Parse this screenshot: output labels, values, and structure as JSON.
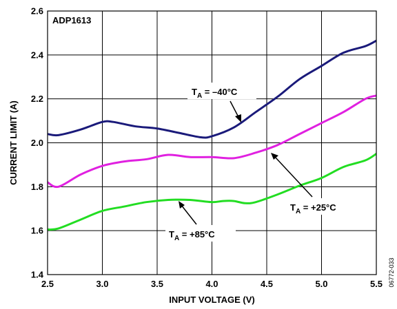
{
  "chart_data": {
    "type": "line",
    "title": "",
    "xlabel": "INPUT VOLTAGE (V)",
    "ylabel": "CURRENT LIMIT (A)",
    "xlim": [
      2.5,
      5.5
    ],
    "ylim": [
      1.4,
      2.6
    ],
    "x_ticks": [
      "2.5",
      "3.0",
      "3.5",
      "4.0",
      "4.5",
      "5.0",
      "5.5"
    ],
    "y_ticks": [
      "1.4",
      "1.6",
      "1.8",
      "2.0",
      "2.2",
      "2.4",
      "2.6"
    ],
    "grid": true,
    "device_label": "ADP1613",
    "figure_id": "06772-033",
    "series": [
      {
        "key": "t_minus40",
        "color": "#1a1a7a",
        "x": [
          2.5,
          2.6,
          2.8,
          3.0,
          3.1,
          3.3,
          3.5,
          3.7,
          3.9,
          4.0,
          4.2,
          4.4,
          4.6,
          4.8,
          5.0,
          5.2,
          5.4,
          5.5
        ],
        "y": [
          2.04,
          2.035,
          2.06,
          2.095,
          2.095,
          2.075,
          2.065,
          2.045,
          2.025,
          2.03,
          2.07,
          2.14,
          2.21,
          2.29,
          2.35,
          2.41,
          2.44,
          2.465
        ]
      },
      {
        "key": "t_plus25",
        "color": "#e020e0",
        "x": [
          2.5,
          2.6,
          2.8,
          3.0,
          3.2,
          3.4,
          3.6,
          3.8,
          4.0,
          4.2,
          4.4,
          4.6,
          4.8,
          5.0,
          5.2,
          5.4,
          5.5
        ],
        "y": [
          1.82,
          1.8,
          1.855,
          1.895,
          1.915,
          1.925,
          1.945,
          1.935,
          1.935,
          1.93,
          1.955,
          1.99,
          2.04,
          2.09,
          2.14,
          2.2,
          2.215
        ]
      },
      {
        "key": "t_plus85",
        "color": "#22dd22",
        "x": [
          2.5,
          2.6,
          2.8,
          3.0,
          3.2,
          3.4,
          3.6,
          3.8,
          4.0,
          4.1,
          4.2,
          4.3,
          4.4,
          4.6,
          4.8,
          5.0,
          5.2,
          5.4,
          5.5
        ],
        "y": [
          1.605,
          1.61,
          1.65,
          1.69,
          1.71,
          1.73,
          1.74,
          1.74,
          1.73,
          1.735,
          1.735,
          1.725,
          1.73,
          1.765,
          1.805,
          1.84,
          1.89,
          1.92,
          1.95
        ]
      }
    ],
    "annotations": [
      {
        "key": "t_minus40",
        "main": "T",
        "subscript": "A",
        "value": " = –40°C"
      },
      {
        "key": "t_plus25",
        "main": "T",
        "subscript": "A",
        "value": " = +25°C"
      },
      {
        "key": "t_plus85",
        "main": "T",
        "subscript": "A",
        "value": " = +85°C"
      }
    ]
  }
}
